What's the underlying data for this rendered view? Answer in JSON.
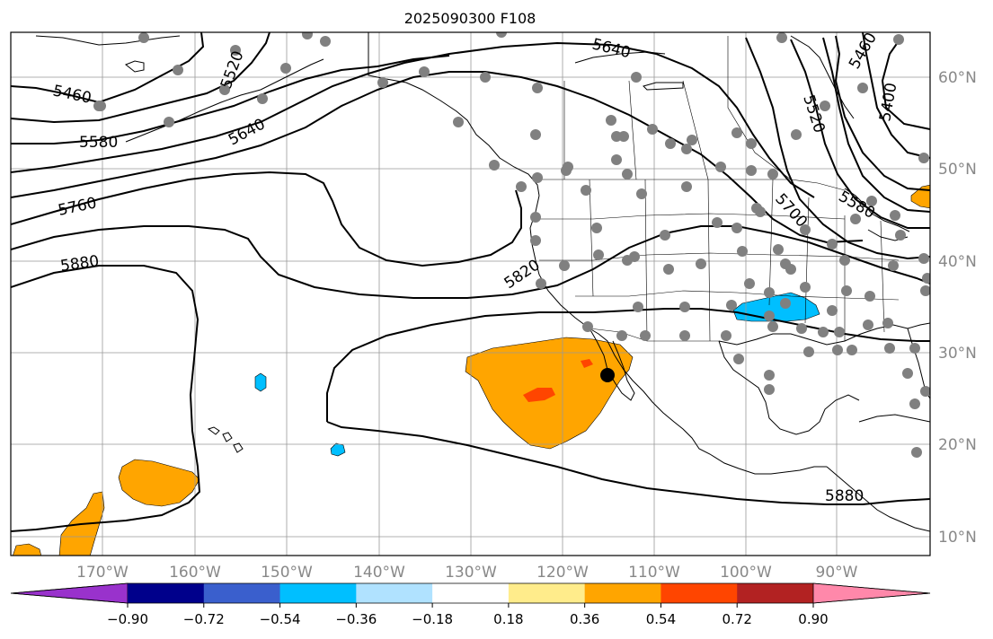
{
  "title": "2025090300 F108",
  "map": {
    "lon_labels": [
      "170°W",
      "160°W",
      "150°W",
      "140°W",
      "130°W",
      "120°W",
      "110°W",
      "100°W",
      "90°W"
    ],
    "lat_labels": [
      "60°N",
      "50°N",
      "40°N",
      "30°N",
      "20°N",
      "10°N"
    ],
    "label_color": "#888888",
    "contour_labels": [
      "5460",
      "5520",
      "5580",
      "5640",
      "5640",
      "5760",
      "5880",
      "5820",
      "5700",
      "5580",
      "5520",
      "5460",
      "5400",
      "5880"
    ]
  },
  "colorbar": {
    "colors": [
      "#9932cc",
      "#00008b",
      "#3a5fcd",
      "#00bfff",
      "#b0e2ff",
      "#ffffff",
      "#ffec8b",
      "#ffa500",
      "#ff4500",
      "#b22222",
      "#ff88aa"
    ],
    "tick_labels": [
      "−0.90",
      "−0.72",
      "−0.54",
      "−0.36",
      "−0.18",
      "0.18",
      "0.36",
      "0.54",
      "0.72",
      "0.90"
    ]
  },
  "fill_colors": {
    "orange": "#ffa500",
    "red_orange": "#ff4500",
    "blue": "#00bfff",
    "light_blue": "#b0e2ff",
    "yellow": "#ffec8b"
  },
  "station_color": "#808080",
  "marker_color": "#000000"
}
